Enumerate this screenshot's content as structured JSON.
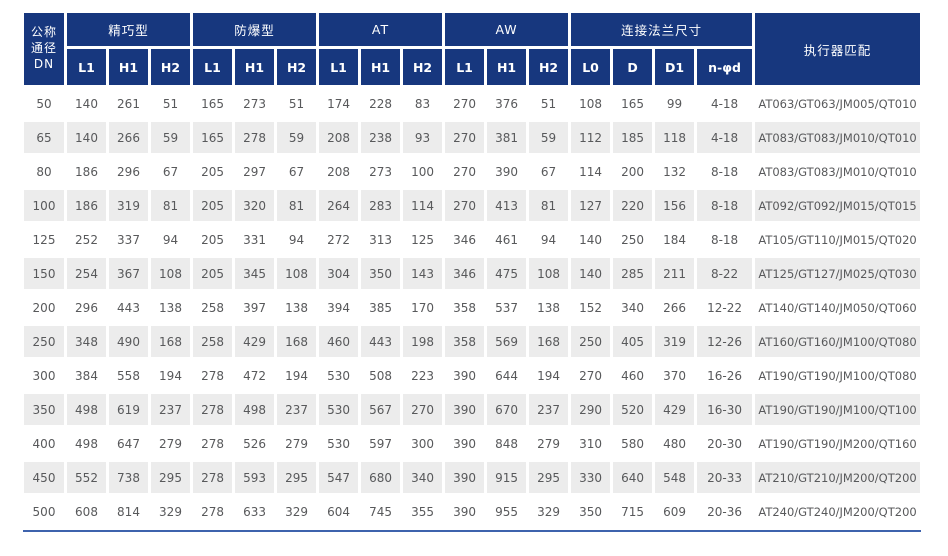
{
  "colors": {
    "header_bg": "#17377e",
    "stripe": "#ececec",
    "text": "#58595b",
    "bottom_line": "#3e63ad"
  },
  "table": {
    "dn_header": "公称\n通径\nDN",
    "actuator_header": "执行器匹配",
    "groups": [
      {
        "label": "精巧型"
      },
      {
        "label": "防爆型"
      },
      {
        "label": "AT"
      },
      {
        "label": "AW"
      },
      {
        "label": "连接法兰尺寸"
      }
    ],
    "sub_headers": [
      "L1",
      "H1",
      "H2",
      "L1",
      "H1",
      "H2",
      "L1",
      "H1",
      "H2",
      "L1",
      "H1",
      "H2",
      "L0",
      "D",
      "D1",
      "n-φd"
    ],
    "rows": [
      [
        50,
        140,
        261,
        51,
        165,
        273,
        51,
        174,
        228,
        83,
        270,
        376,
        51,
        108,
        165,
        99,
        "4-18",
        "AT063/GT063/JM005/QT010"
      ],
      [
        65,
        140,
        266,
        59,
        165,
        278,
        59,
        208,
        238,
        93,
        270,
        381,
        59,
        112,
        185,
        118,
        "4-18",
        "AT083/GT083/JM010/QT010"
      ],
      [
        80,
        186,
        296,
        67,
        205,
        297,
        67,
        208,
        273,
        100,
        270,
        390,
        67,
        114,
        200,
        132,
        "8-18",
        "AT083/GT083/JM010/QT010"
      ],
      [
        100,
        186,
        319,
        81,
        205,
        320,
        81,
        264,
        283,
        114,
        270,
        413,
        81,
        127,
        220,
        156,
        "8-18",
        "AT092/GT092/JM015/QT015"
      ],
      [
        125,
        252,
        337,
        94,
        205,
        331,
        94,
        272,
        313,
        125,
        346,
        461,
        94,
        140,
        250,
        184,
        "8-18",
        "AT105/GT110/JM015/QT020"
      ],
      [
        150,
        254,
        367,
        108,
        205,
        345,
        108,
        304,
        350,
        143,
        346,
        475,
        108,
        140,
        285,
        211,
        "8-22",
        "AT125/GT127/JM025/QT030"
      ],
      [
        200,
        296,
        443,
        138,
        258,
        397,
        138,
        394,
        385,
        170,
        358,
        537,
        138,
        152,
        340,
        266,
        "12-22",
        "AT140/GT140/JM050/QT060"
      ],
      [
        250,
        348,
        490,
        168,
        258,
        429,
        168,
        460,
        443,
        198,
        358,
        569,
        168,
        250,
        405,
        319,
        "12-26",
        "AT160/GT160/JM100/QT080"
      ],
      [
        300,
        384,
        558,
        194,
        278,
        472,
        194,
        530,
        508,
        223,
        390,
        644,
        194,
        270,
        460,
        370,
        "16-26",
        "AT190/GT190/JM100/QT080"
      ],
      [
        350,
        498,
        619,
        237,
        278,
        498,
        237,
        530,
        567,
        270,
        390,
        670,
        237,
        290,
        520,
        429,
        "16-30",
        "AT190/GT190/JM100/QT100"
      ],
      [
        400,
        498,
        647,
        279,
        278,
        526,
        279,
        530,
        597,
        300,
        390,
        848,
        279,
        310,
        580,
        480,
        "20-30",
        "AT190/GT190/JM200/QT160"
      ],
      [
        450,
        552,
        738,
        295,
        278,
        593,
        295,
        547,
        680,
        340,
        390,
        915,
        295,
        330,
        640,
        548,
        "20-33",
        "AT210/GT210/JM200/QT200"
      ],
      [
        500,
        608,
        814,
        329,
        278,
        633,
        329,
        604,
        745,
        355,
        390,
        955,
        329,
        350,
        715,
        609,
        "20-36",
        "AT240/GT240/JM200/QT200"
      ]
    ]
  }
}
